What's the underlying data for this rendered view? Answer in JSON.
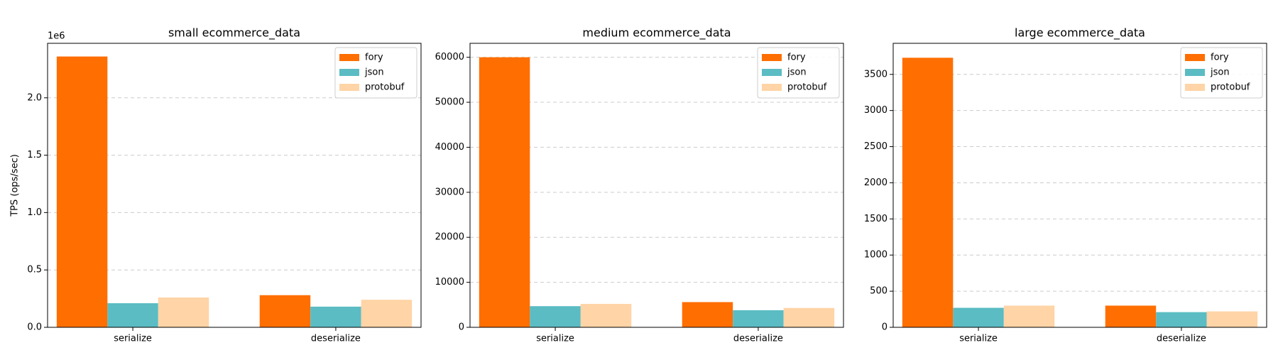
{
  "chart_data": [
    {
      "type": "bar",
      "title": "small ecommerce_data",
      "y_label": "TPS (ops/sec)",
      "y_offset_label": "1e6",
      "categories": [
        "serialize",
        "deserialize"
      ],
      "series": [
        {
          "name": "fory",
          "color": "#ff6e00",
          "values": [
            2360000,
            280000
          ]
        },
        {
          "name": "json",
          "color": "#5bbcc3",
          "values": [
            210000,
            180000
          ]
        },
        {
          "name": "protobuf",
          "color": "#ffd4a6",
          "values": [
            260000,
            240000
          ]
        }
      ],
      "ylim": [
        0,
        2475000
      ],
      "yticks": [
        {
          "value": 0,
          "label": "0.0"
        },
        {
          "value": 500000,
          "label": "0.5"
        },
        {
          "value": 1000000,
          "label": "1.0"
        },
        {
          "value": 1500000,
          "label": "1.5"
        },
        {
          "value": 2000000,
          "label": "2.0"
        }
      ],
      "grid": true,
      "legend": "upper right"
    },
    {
      "type": "bar",
      "title": "medium ecommerce_data",
      "categories": [
        "serialize",
        "deserialize"
      ],
      "series": [
        {
          "name": "fory",
          "color": "#ff6e00",
          "values": [
            60000,
            5600
          ]
        },
        {
          "name": "json",
          "color": "#5bbcc3",
          "values": [
            4700,
            3800
          ]
        },
        {
          "name": "protobuf",
          "color": "#ffd4a6",
          "values": [
            5200,
            4300
          ]
        }
      ],
      "ylim": [
        0,
        63100
      ],
      "yticks": [
        0,
        10000,
        20000,
        30000,
        40000,
        50000,
        60000
      ],
      "grid": true,
      "legend": "upper right"
    },
    {
      "type": "bar",
      "title": "large ecommerce_data",
      "categories": [
        "serialize",
        "deserialize"
      ],
      "series": [
        {
          "name": "fory",
          "color": "#ff6e00",
          "values": [
            3730,
            300
          ]
        },
        {
          "name": "json",
          "color": "#5bbcc3",
          "values": [
            270,
            210
          ]
        },
        {
          "name": "protobuf",
          "color": "#ffd4a6",
          "values": [
            300,
            220
          ]
        }
      ],
      "ylim": [
        0,
        3930
      ],
      "yticks": [
        0,
        500,
        1000,
        1500,
        2000,
        2500,
        3000,
        3500
      ],
      "grid": true,
      "legend": "upper right"
    }
  ]
}
